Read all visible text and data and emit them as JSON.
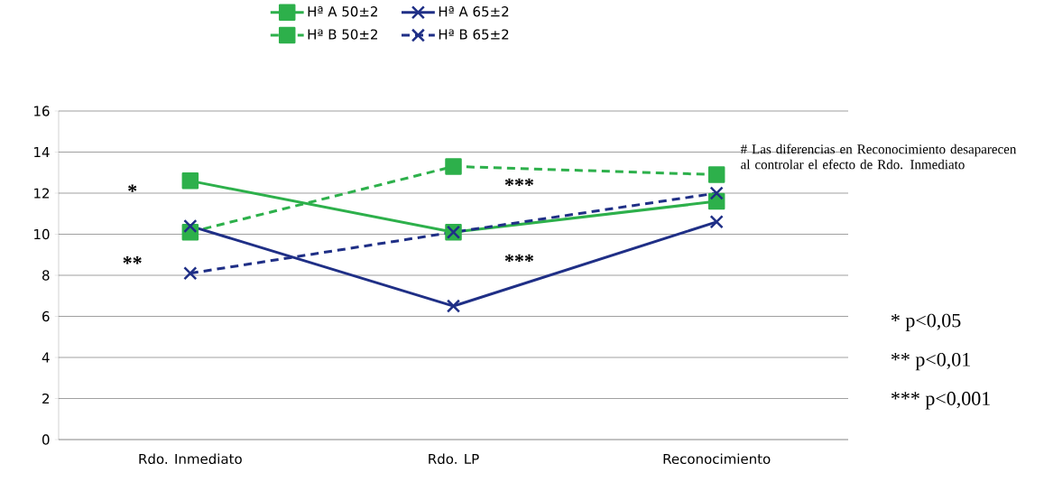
{
  "chart_data": {
    "type": "line",
    "categories": [
      "Rdo. Inmediato",
      "Rdo. LP",
      "Reconocimiento"
    ],
    "series": [
      {
        "name": "Hª A 50±2",
        "color": "#2db04b",
        "values": [
          12.6,
          10.1,
          11.6
        ],
        "marker": "square",
        "line_style": "solid"
      },
      {
        "name": "Hª A 65±2",
        "color": "#1f2f86",
        "values": [
          10.4,
          6.5,
          10.6
        ],
        "marker": "cross",
        "line_style": "solid"
      },
      {
        "name": "Hª B 50±2",
        "color": "#2db04b",
        "values": [
          10.1,
          13.3,
          12.9
        ],
        "marker": "square",
        "line_style": "dashed"
      },
      {
        "name": "Hª B 65±2",
        "color": "#1f2f86",
        "values": [
          8.1,
          10.1,
          12.0
        ],
        "marker": "cross",
        "line_style": "dashed"
      }
    ],
    "ylim": [
      0,
      16
    ],
    "yticks": [
      0,
      2,
      4,
      6,
      8,
      10,
      12,
      14,
      16
    ],
    "grid": "y",
    "legend": "top",
    "annotations": [
      "*",
      "**",
      "***",
      "***",
      "# Las diferencias en Reconocimiento desaparecen al controlar el efecto de Rdo. Inmediato",
      "* p<0,05",
      "** p<0,01",
      "*** p<0,001"
    ]
  }
}
